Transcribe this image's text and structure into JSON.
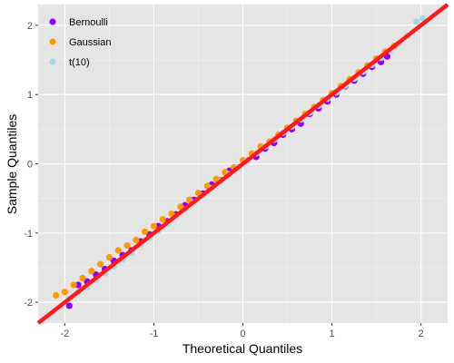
{
  "chart_data": {
    "type": "scatter",
    "title": "",
    "xlabel": "Theoretical Quantiles",
    "ylabel": "Sample Quantiles",
    "xlim": [
      -2.3,
      2.3
    ],
    "ylim": [
      -2.3,
      2.3
    ],
    "xticks": [
      -2,
      -1,
      0,
      1,
      2
    ],
    "yticks": [
      -2,
      -1,
      0,
      1,
      2
    ],
    "grid": true,
    "legend_position": "top-left",
    "panel_color": "#e5e5e5",
    "reference_line": {
      "slope": 1,
      "intercept": 0,
      "color": "#ff1a1a"
    },
    "series": [
      {
        "name": "Bernoulli",
        "color": "#8b00ff",
        "x": [
          -1.95,
          -1.85,
          -1.75,
          -1.65,
          -1.55,
          -1.45,
          -1.35,
          -1.25,
          -1.15,
          -1.05,
          -0.95,
          -0.85,
          -0.75,
          -0.65,
          -0.55,
          -0.45,
          -0.35,
          -0.25,
          -0.15,
          -0.05,
          0.05,
          0.15,
          0.25,
          0.35,
          0.45,
          0.55,
          0.65,
          0.75,
          0.85,
          0.95,
          1.05,
          1.15,
          1.25,
          1.35,
          1.45,
          1.55,
          1.62
        ],
        "y": [
          -2.05,
          -1.75,
          -1.7,
          -1.6,
          -1.52,
          -1.4,
          -1.32,
          -1.25,
          -1.12,
          -1.02,
          -0.9,
          -0.83,
          -0.73,
          -0.6,
          -0.52,
          -0.43,
          -0.3,
          -0.24,
          -0.1,
          -0.05,
          0.05,
          0.1,
          0.22,
          0.3,
          0.42,
          0.5,
          0.58,
          0.72,
          0.8,
          0.9,
          1.0,
          1.12,
          1.2,
          1.3,
          1.4,
          1.47,
          1.55
        ]
      },
      {
        "name": "Gaussian",
        "color": "#ff9900",
        "x": [
          -2.1,
          -2.0,
          -1.9,
          -1.8,
          -1.7,
          -1.6,
          -1.5,
          -1.4,
          -1.3,
          -1.2,
          -1.1,
          -1.0,
          -0.9,
          -0.8,
          -0.7,
          -0.6,
          -0.5,
          -0.4,
          -0.3,
          -0.2,
          -0.1,
          0.0,
          0.1,
          0.2,
          0.3,
          0.4,
          0.5,
          0.6,
          0.7,
          0.8,
          0.9,
          1.0,
          1.1,
          1.2,
          1.3,
          1.4,
          1.5,
          1.6,
          1.7
        ],
        "y": [
          -1.9,
          -1.85,
          -1.75,
          -1.65,
          -1.55,
          -1.45,
          -1.35,
          -1.25,
          -1.18,
          -1.1,
          -0.98,
          -0.9,
          -0.8,
          -0.72,
          -0.62,
          -0.52,
          -0.42,
          -0.32,
          -0.22,
          -0.12,
          -0.05,
          0.05,
          0.15,
          0.25,
          0.32,
          0.42,
          0.52,
          0.62,
          0.72,
          0.82,
          0.92,
          1.02,
          1.12,
          1.22,
          1.32,
          1.42,
          1.52,
          1.62,
          1.7
        ]
      },
      {
        "name": "t(10)",
        "color": "#a6d8e6",
        "x": [
          -1.95,
          -1.85,
          -1.75,
          -1.65,
          -1.55,
          -1.45,
          -1.35,
          -1.25,
          -1.15,
          -1.05,
          -0.95,
          -0.85,
          -0.75,
          -0.65,
          -0.55,
          -0.45,
          -0.35,
          -0.25,
          -0.15,
          -0.05,
          0.05,
          0.15,
          0.25,
          0.35,
          0.45,
          0.55,
          0.65,
          0.75,
          0.85,
          0.95,
          1.05,
          1.15,
          1.25,
          1.35,
          1.45,
          1.55,
          1.65,
          1.75,
          1.85,
          1.95,
          2.02
        ],
        "y": [
          -1.95,
          -1.85,
          -1.78,
          -1.68,
          -1.58,
          -1.48,
          -1.38,
          -1.28,
          -1.17,
          -1.07,
          -0.97,
          -0.87,
          -0.77,
          -0.66,
          -0.56,
          -0.46,
          -0.35,
          -0.25,
          -0.15,
          -0.05,
          0.05,
          0.15,
          0.25,
          0.35,
          0.45,
          0.54,
          0.64,
          0.74,
          0.84,
          0.94,
          1.03,
          1.13,
          1.23,
          1.33,
          1.43,
          1.53,
          1.63,
          1.73,
          1.85,
          2.05,
          2.1
        ]
      }
    ]
  }
}
